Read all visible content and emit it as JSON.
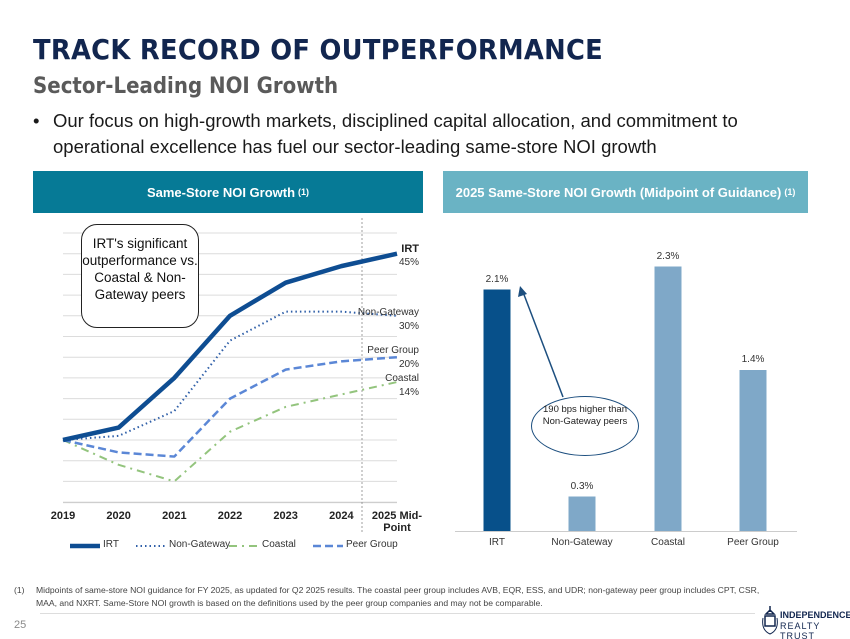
{
  "header": {
    "title": "TRACK RECORD OF OUTPERFORMANCE",
    "subtitle": "Sector-Leading NOI Growth",
    "bullet": "Our focus on high-growth markets, disciplined capital allocation, and commitment to operational excellence has fuel our sector-leading same-store NOI growth"
  },
  "colors": {
    "navy": "#12264f",
    "teal_header": "#067a96",
    "light_header": "#6ab3c4",
    "irt": "#0e4d92",
    "non_gateway": "#2f5fa8",
    "coastal": "#93c47d",
    "peer": "#5b87d6",
    "bar_irt": "#07508a",
    "bar_peer": "#7fa8c8"
  },
  "chart_data": [
    {
      "type": "line",
      "title": "Same-Store NOI Growth",
      "title_note": "(1)",
      "categories": [
        "2019",
        "2020",
        "2021",
        "2022",
        "2023",
        "2024",
        "2025 Mid-Point"
      ],
      "category_lines": [
        [
          "2019"
        ],
        [
          "2020"
        ],
        [
          "2021"
        ],
        [
          "2022"
        ],
        [
          "2023"
        ],
        [
          "2024"
        ],
        [
          "2025 Mid-",
          "Point"
        ]
      ],
      "ylim": [
        -15,
        50
      ],
      "grid": true,
      "legend": "bottom",
      "series": [
        {
          "name": "IRT",
          "values": [
            0,
            3,
            15,
            30,
            38,
            42,
            45
          ],
          "end_label": "45%",
          "style": "solid"
        },
        {
          "name": "Non-Gateway",
          "values": [
            0,
            1,
            7,
            24,
            31,
            31,
            30
          ],
          "end_label": "30%",
          "style": "dotted"
        },
        {
          "name": "Coastal",
          "values": [
            0,
            -6,
            -10,
            2,
            8,
            11,
            14
          ],
          "end_label": "14%",
          "style": "dashdot"
        },
        {
          "name": "Peer Group",
          "values": [
            0,
            -3,
            -4,
            10,
            17,
            19,
            20
          ],
          "end_label": "20%",
          "style": "dashed"
        }
      ],
      "annotation": "IRT's significant outperformance vs. Coastal & Non-Gateway peers"
    },
    {
      "type": "bar",
      "title": "2025 Same-Store NOI Growth (Midpoint of Guidance)",
      "title_note": "(1)",
      "categories": [
        "IRT",
        "Non-Gateway",
        "Coastal",
        "Peer Group"
      ],
      "values": [
        2.1,
        0.3,
        2.3,
        1.4
      ],
      "data_labels": [
        "2.1%",
        "0.3%",
        "2.3%",
        "1.4%"
      ],
      "ylim": [
        0,
        2.3
      ],
      "annotation": "190 bps higher than Non-Gateway peers"
    }
  ],
  "footnote": {
    "marker": "(1)",
    "text": "Midpoints of same-store NOI guidance for FY 2025, as updated for Q2 2025 results.  The coastal peer group includes AVB, EQR, ESS, and UDR; non-gateway peer group includes CPT, CSR, MAA, and NXRT. Same-Store NOI growth is based on the definitions used by the peer group companies and may not be comparable."
  },
  "page_number": "25",
  "logo": {
    "line1": "INDEPENDENCE",
    "line2": "REALTY TRUST"
  }
}
